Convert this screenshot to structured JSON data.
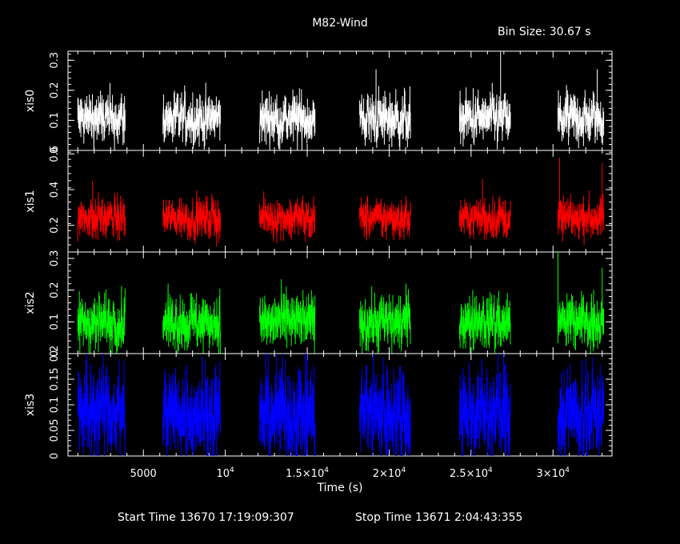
{
  "title": "M82-Wind",
  "bin_size_label": "Bin Size: 30.67 s",
  "footer": {
    "start_label": "Start Time 13670 17:19:09:307",
    "stop_label": "Stop Time 13671  2:04:43:355"
  },
  "chart_data": {
    "type": "line",
    "title": "M82-Wind",
    "xlabel": "Time (s)",
    "xlim": [
      400,
      33600
    ],
    "x_ticks": [
      {
        "value": 5000,
        "label": "5000"
      },
      {
        "value": 10000,
        "base": "10",
        "exp": "4"
      },
      {
        "value": 15000,
        "base": "1.5×10",
        "exp": "4"
      },
      {
        "value": 20000,
        "base": "2×10",
        "exp": "4"
      },
      {
        "value": 25000,
        "base": "2.5×10",
        "exp": "4"
      },
      {
        "value": 30000,
        "base": "3×10",
        "exp": "4"
      }
    ],
    "segments": [
      [
        1000,
        3900
      ],
      [
        6200,
        9700
      ],
      [
        12100,
        15500
      ],
      [
        18200,
        21300
      ],
      [
        24300,
        27400
      ],
      [
        30300,
        33100
      ]
    ],
    "panels": [
      {
        "ylabel": "xis0",
        "color": "#ffffff",
        "ylim": [
          0,
          0.33
        ],
        "y_ticks": [
          {
            "value": 0,
            "label": "0"
          },
          {
            "value": 0.1,
            "label": "0.1"
          },
          {
            "value": 0.2,
            "label": "0.2"
          },
          {
            "value": 0.3,
            "label": "0.3"
          }
        ],
        "mean": 0.105,
        "spread": 0.055,
        "peaks": [
          [
            19200,
            0.27
          ],
          [
            26800,
            0.33
          ],
          [
            32700,
            0.27
          ]
        ]
      },
      {
        "ylabel": "xis1",
        "color": "#ff0000",
        "ylim": [
          0.05,
          0.62
        ],
        "y_ticks": [
          {
            "value": 0.2,
            "label": "0.2"
          },
          {
            "value": 0.4,
            "label": "0.4"
          },
          {
            "value": 0.6,
            "label": "0.6"
          }
        ],
        "mean": 0.24,
        "spread": 0.07,
        "peaks": [
          [
            1900,
            0.45
          ],
          [
            25700,
            0.46
          ],
          [
            30400,
            0.58
          ],
          [
            33000,
            0.55
          ]
        ]
      },
      {
        "ylabel": "xis2",
        "color": "#00ff00",
        "ylim": [
          0,
          0.32
        ],
        "y_ticks": [
          {
            "value": 0,
            "label": "0"
          },
          {
            "value": 0.1,
            "label": "0.1"
          },
          {
            "value": 0.2,
            "label": "0.2"
          },
          {
            "value": 0.3,
            "label": "0.3"
          }
        ],
        "mean": 0.1,
        "spread": 0.055,
        "peaks": [
          [
            30300,
            0.32
          ],
          [
            33000,
            0.27
          ]
        ]
      },
      {
        "ylabel": "xis3",
        "color": "#0000ff",
        "ylim": [
          0,
          0.2
        ],
        "y_ticks": [
          {
            "value": 0,
            "label": "0"
          },
          {
            "value": 0.05,
            "label": "0.05"
          },
          {
            "value": 0.1,
            "label": "0.1"
          },
          {
            "value": 0.15,
            "label": "0.15"
          },
          {
            "value": 0.2,
            "label": "0.2"
          }
        ],
        "mean": 0.085,
        "spread": 0.06,
        "peaks": []
      }
    ],
    "grid": false,
    "legend": "none"
  }
}
